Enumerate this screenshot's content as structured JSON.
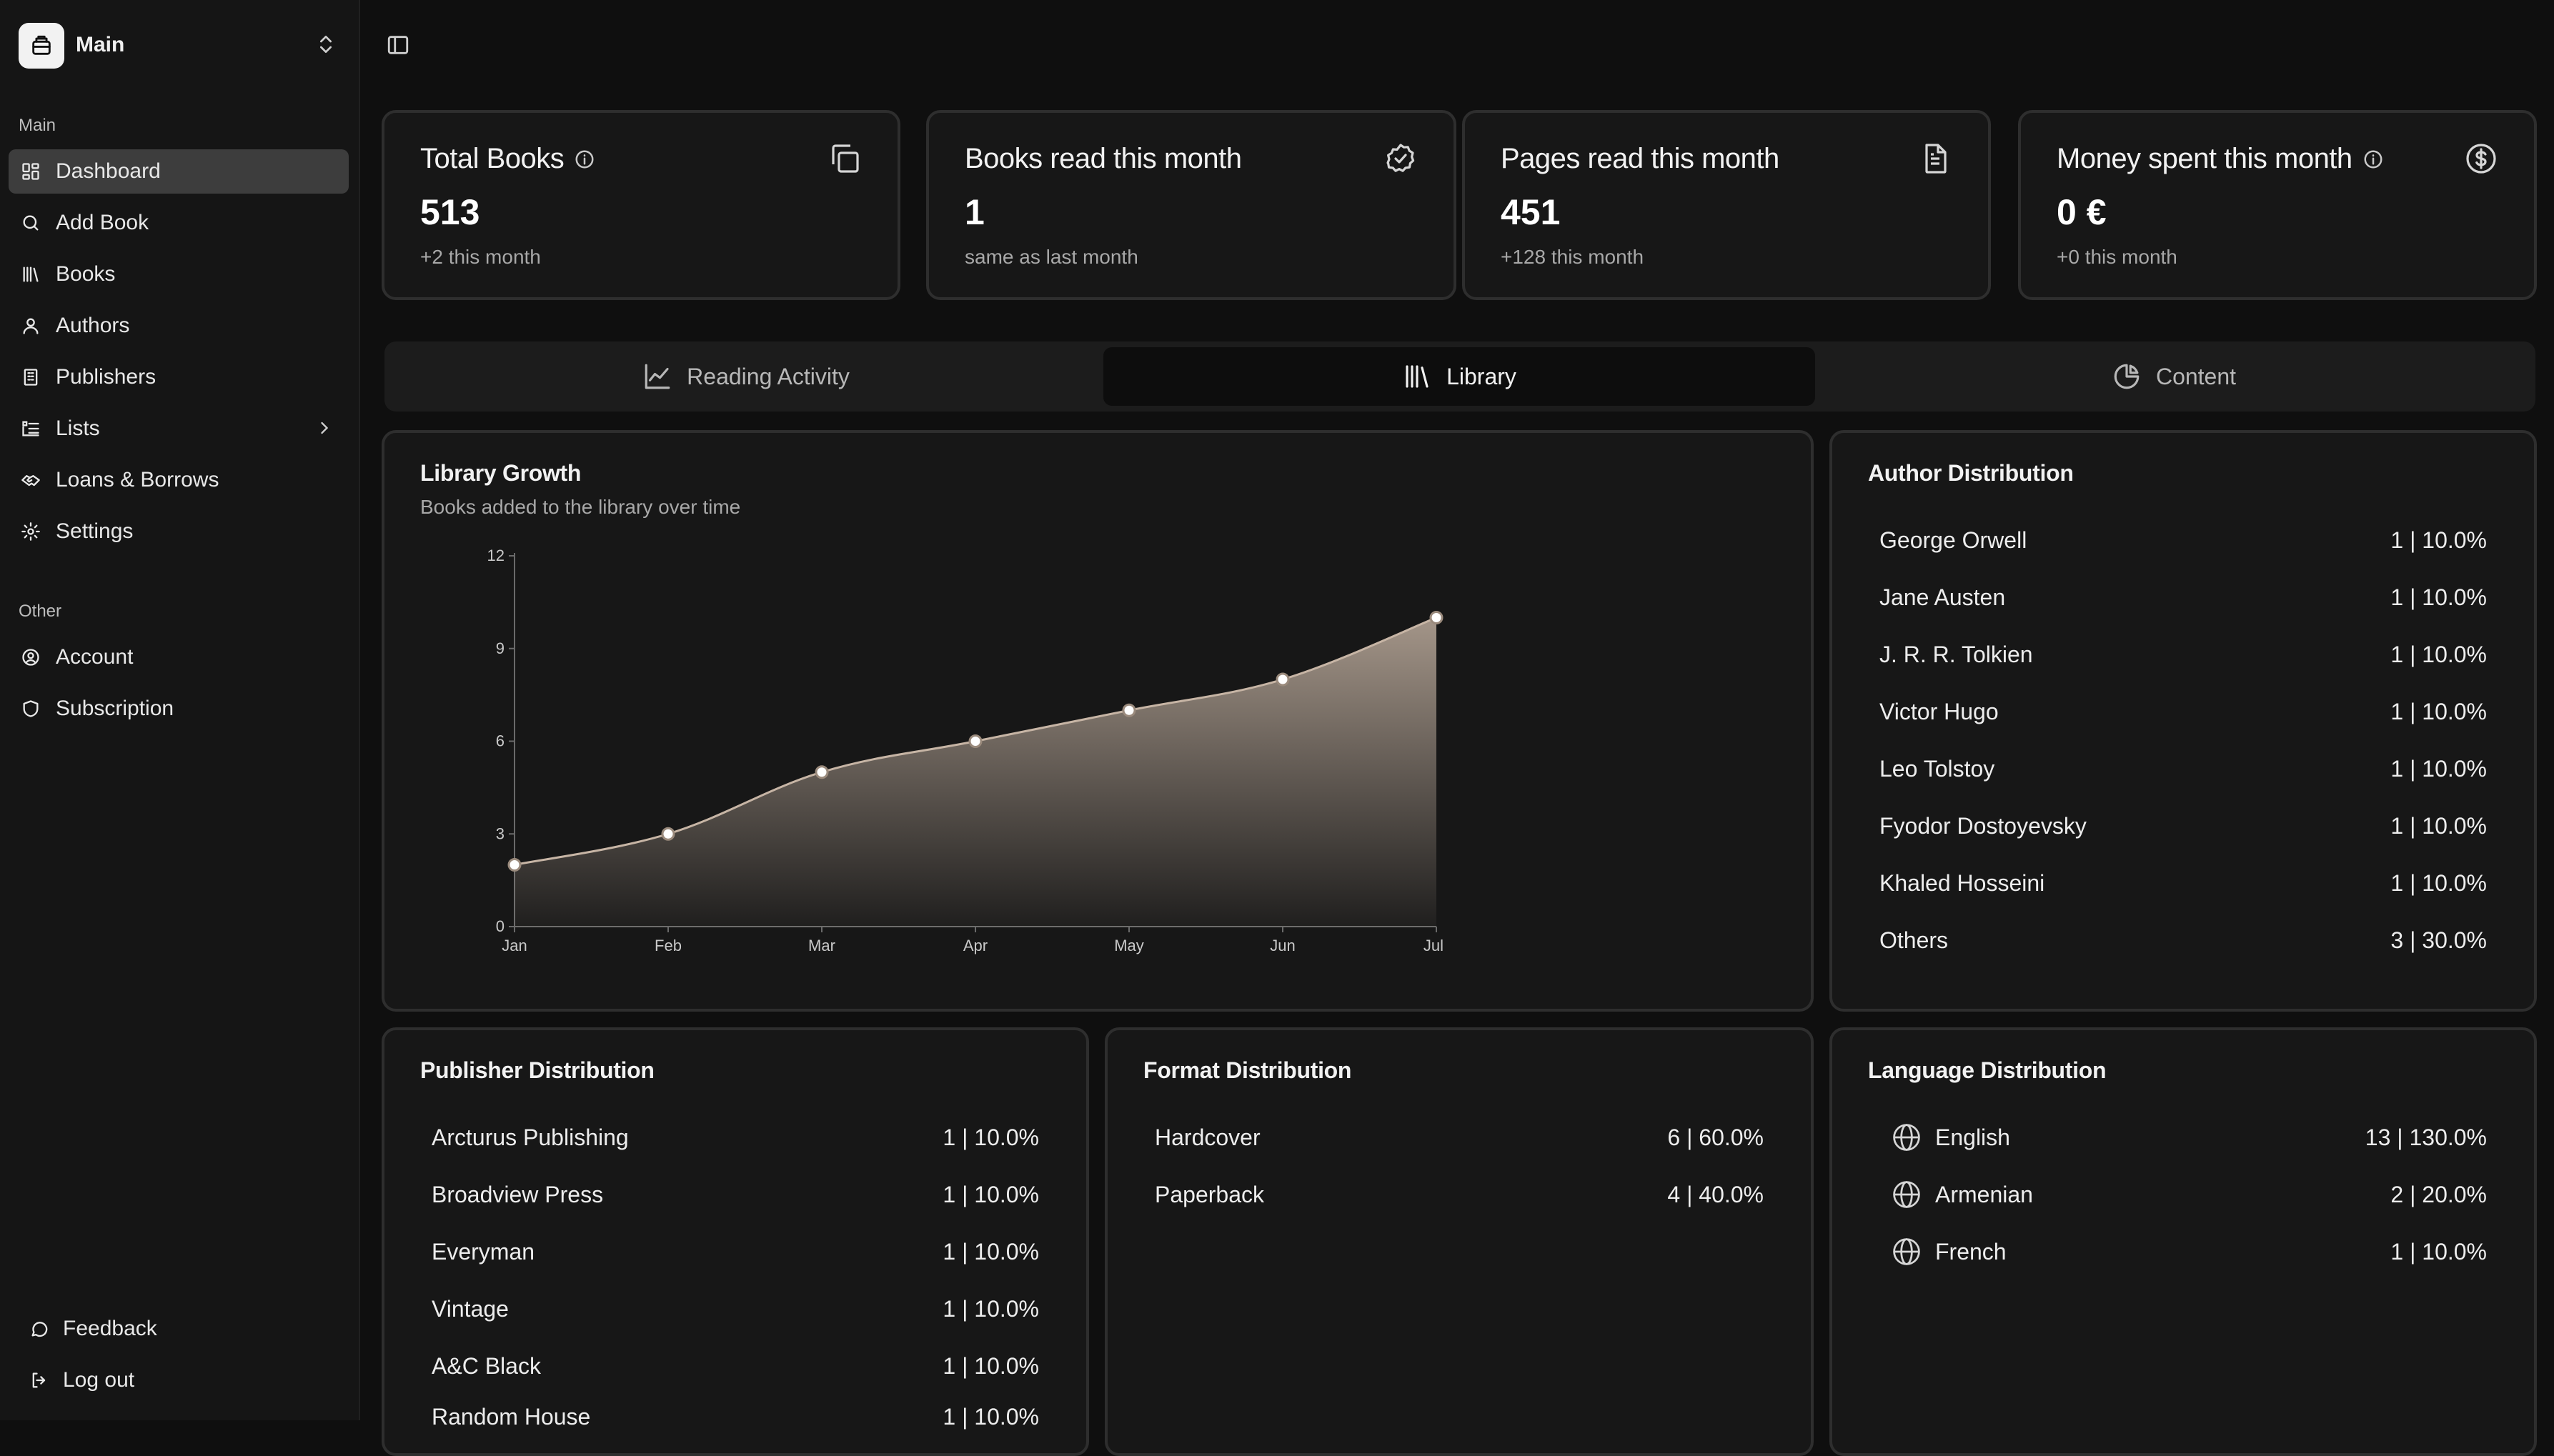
{
  "sidebar": {
    "workspace": "Main",
    "section_main": "Main",
    "section_other": "Other",
    "items": [
      {
        "label": "Dashboard",
        "icon": "dashboard-icon",
        "active": true
      },
      {
        "label": "Add Book",
        "icon": "search-icon"
      },
      {
        "label": "Books",
        "icon": "library-icon"
      },
      {
        "label": "Authors",
        "icon": "user-icon"
      },
      {
        "label": "Publishers",
        "icon": "building-icon"
      },
      {
        "label": "Lists",
        "icon": "list-icon"
      },
      {
        "label": "Loans & Borrows",
        "icon": "handshake-icon"
      },
      {
        "label": "Settings",
        "icon": "gear-icon"
      }
    ],
    "other_items": [
      {
        "label": "Account",
        "icon": "user-circle-icon"
      },
      {
        "label": "Subscription",
        "icon": "shield-icon"
      }
    ],
    "footer": {
      "feedback": "Feedback",
      "logout": "Log out"
    }
  },
  "stats": [
    {
      "title": "Total Books",
      "value": "513",
      "sub": "+2 this month",
      "icon": "copy-icon"
    },
    {
      "title": "Books read this month",
      "value": "1",
      "sub": "same as last month",
      "icon": "check-badge-icon"
    },
    {
      "title": "Pages read this month",
      "value": "451",
      "sub": "+128 this month",
      "icon": "file-icon"
    },
    {
      "title": "Money spent this month",
      "value": "0 €",
      "sub": "+0 this month",
      "icon": "dollar-circle-icon"
    }
  ],
  "tabs": [
    {
      "label": "Reading Activity",
      "icon": "line-chart-icon"
    },
    {
      "label": "Library",
      "icon": "library-icon",
      "active": true
    },
    {
      "label": "Content",
      "icon": "pie-chart-icon"
    }
  ],
  "library_growth": {
    "title": "Library Growth",
    "subtitle": "Books added to the library over time"
  },
  "chart_data": {
    "type": "area",
    "title": "Library Growth",
    "subtitle": "Books added to the library over time",
    "categories": [
      "Jan",
      "Feb",
      "Mar",
      "Apr",
      "May",
      "Jun",
      "Jul"
    ],
    "values": [
      2,
      3,
      5,
      6,
      7,
      8,
      10
    ],
    "ylim": [
      0,
      12
    ],
    "yticks": [
      0,
      3,
      6,
      9,
      12
    ],
    "grid": false,
    "color": "#c7b5a5"
  },
  "author_distribution": {
    "title": "Author Distribution",
    "rows": [
      {
        "label": "George Orwell",
        "value": "1 | 10.0%"
      },
      {
        "label": "Jane Austen",
        "value": "1 | 10.0%"
      },
      {
        "label": "J. R. R. Tolkien",
        "value": "1 | 10.0%"
      },
      {
        "label": "Victor Hugo",
        "value": "1 | 10.0%"
      },
      {
        "label": "Leo Tolstoy",
        "value": "1 | 10.0%"
      },
      {
        "label": "Fyodor Dostoyevsky",
        "value": "1 | 10.0%"
      },
      {
        "label": "Khaled Hosseini",
        "value": "1 | 10.0%"
      },
      {
        "label": "Others",
        "value": "3 | 30.0%"
      }
    ]
  },
  "publisher_distribution": {
    "title": "Publisher Distribution",
    "rows": [
      {
        "label": "Arcturus Publishing",
        "value": "1 | 10.0%"
      },
      {
        "label": "Broadview Press",
        "value": "1 | 10.0%"
      },
      {
        "label": "Everyman",
        "value": "1 | 10.0%"
      },
      {
        "label": "Vintage",
        "value": "1 | 10.0%"
      },
      {
        "label": "A&C Black",
        "value": "1 | 10.0%"
      },
      {
        "label": "Random House",
        "value": "1 | 10.0%"
      }
    ]
  },
  "format_distribution": {
    "title": "Format Distribution",
    "rows": [
      {
        "label": "Hardcover",
        "value": "6 | 60.0%"
      },
      {
        "label": "Paperback",
        "value": "4 | 40.0%"
      }
    ]
  },
  "language_distribution": {
    "title": "Language Distribution",
    "rows": [
      {
        "label": "English",
        "value": "13 | 130.0%"
      },
      {
        "label": "Armenian",
        "value": "2 | 20.0%"
      },
      {
        "label": "French",
        "value": "1 | 10.0%"
      }
    ]
  }
}
